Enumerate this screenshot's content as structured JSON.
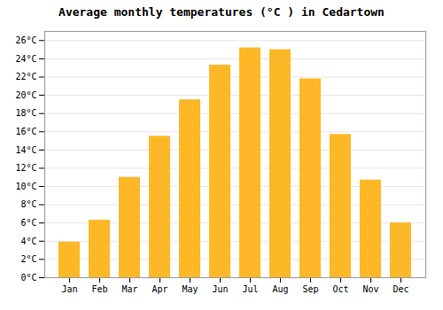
{
  "chart_data": {
    "type": "bar",
    "title": "Average monthly temperatures (°C ) in Cedartown",
    "categories": [
      "Jan",
      "Feb",
      "Mar",
      "Apr",
      "May",
      "Jun",
      "Jul",
      "Aug",
      "Sep",
      "Oct",
      "Nov",
      "Dec"
    ],
    "values": [
      3.9,
      6.3,
      11.0,
      15.5,
      19.5,
      23.3,
      25.2,
      25.0,
      21.8,
      15.7,
      10.7,
      6.0
    ],
    "color": "#FDB827",
    "ylim": [
      0,
      27
    ],
    "yticks": [
      {
        "value": 0,
        "label": "0°C"
      },
      {
        "value": 2,
        "label": "2°C"
      },
      {
        "value": 4,
        "label": "4°C"
      },
      {
        "value": 6,
        "label": "6°C"
      },
      {
        "value": 8,
        "label": "8°C"
      },
      {
        "value": 10,
        "label": "10°C"
      },
      {
        "value": 12,
        "label": "12°C"
      },
      {
        "value": 14,
        "label": "14°C"
      },
      {
        "value": 16,
        "label": "16°C"
      },
      {
        "value": 18,
        "label": "18°C"
      },
      {
        "value": 20,
        "label": "20°C"
      },
      {
        "value": 22,
        "label": "22°C"
      },
      {
        "value": 24,
        "label": "24°C"
      },
      {
        "value": 26,
        "label": "26°C"
      }
    ],
    "grid": true
  }
}
